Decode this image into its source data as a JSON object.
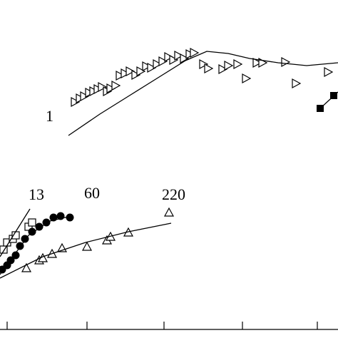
{
  "chart_data": {
    "type": "scatter",
    "xlim": [
      0,
      474
    ],
    "ylim": [
      0,
      474
    ],
    "xticks": [
      10,
      122,
      230,
      340,
      445
    ],
    "annotations": [
      "1",
      "13",
      "60",
      "220"
    ],
    "series": [
      {
        "marker": "triangle-right",
        "color": "#000",
        "x": [
          105,
          112,
          118,
          125,
          131,
          137,
          143,
          150,
          155,
          162,
          168,
          175,
          182,
          190,
          197,
          205,
          212,
          220,
          228,
          236,
          243,
          250,
          258,
          266,
          272,
          285,
          292,
          312,
          320,
          333,
          345,
          360,
          368,
          400,
          415,
          460
        ],
        "values": [
          331,
          336,
          339,
          344,
          346,
          349,
          352,
          346,
          350,
          354,
          368,
          371,
          374,
          369,
          374,
          381,
          379,
          384,
          388,
          394,
          390,
          396,
          392,
          398,
          400,
          384,
          378,
          377,
          382,
          384,
          364,
          386,
          386,
          387,
          357,
          373
        ]
      },
      {
        "marker": "line",
        "color": "#000",
        "x": [
          96,
          140,
          180,
          220,
          260,
          290,
          320,
          350,
          390,
          430,
          474
        ],
        "values": [
          284,
          314,
          339,
          364,
          389,
          402,
          399,
          392,
          386,
          382,
          386
        ]
      },
      {
        "marker": "square-filled",
        "color": "#000",
        "x": [
          449,
          468
        ],
        "values": [
          322,
          340
        ]
      },
      {
        "marker": "line",
        "color": "#000",
        "x": [
          449,
          474
        ],
        "values": [
          322,
          345
        ]
      },
      {
        "marker": "square-open",
        "color": "#000",
        "x": [
          5,
          10,
          18,
          22,
          40,
          45
        ],
        "values": [
          124,
          134,
          139,
          144,
          156,
          162
        ]
      },
      {
        "marker": "line",
        "color": "#000",
        "x": [
          0,
          42
        ],
        "values": [
          114,
          181
        ]
      },
      {
        "marker": "circle-filled",
        "color": "#000",
        "x": [
          3,
          10,
          15,
          22,
          28,
          35,
          45,
          55,
          65,
          75,
          85,
          98
        ],
        "values": [
          96,
          102,
          109,
          116,
          129,
          139,
          149,
          156,
          162,
          169,
          171,
          169
        ]
      },
      {
        "marker": "line",
        "color": "#000",
        "x": [
          0,
          40,
          70,
          100
        ],
        "values": [
          89,
          144,
          164,
          171
        ]
      },
      {
        "marker": "triangle-up",
        "color": "#000",
        "x": [
          37,
          55,
          60,
          73,
          87,
          122,
          150,
          155,
          180,
          237
        ],
        "values": [
          98,
          109,
          112,
          118,
          126,
          128,
          137,
          142,
          148,
          176
        ]
      },
      {
        "marker": "line",
        "color": "#000",
        "x": [
          0,
          60,
          120,
          180,
          240
        ],
        "values": [
          84,
          114,
          134,
          149,
          161
        ]
      }
    ]
  }
}
